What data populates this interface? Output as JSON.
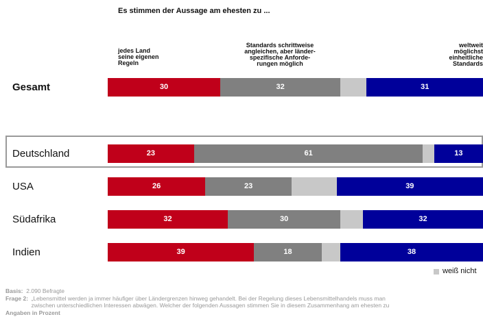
{
  "chart_data": {
    "type": "stacked-bar-horizontal",
    "title": "Es stimmen der Aussage am ehesten zu ...",
    "categories": [
      "Gesamt",
      "Deutschland",
      "USA",
      "Südafrika",
      "Indien"
    ],
    "series": [
      {
        "name": "jedes Land\nseine eigenen\nRegeln",
        "color": "#c0001a",
        "values": [
          30,
          23,
          26,
          32,
          39
        ]
      },
      {
        "name": "Standards schrittweise\nangleichen, aber länder-\nspezifische Anforde-\nrungen möglich",
        "color": "#808080",
        "values": [
          32,
          61,
          23,
          30,
          18
        ]
      },
      {
        "name": "weiß nicht",
        "color": "#c8c8c8",
        "values": [
          7,
          3,
          12,
          6,
          5
        ]
      },
      {
        "name": "weltweit\nmöglichst\neinheitliche\nStandards",
        "color": "#00009a",
        "values": [
          31,
          13,
          39,
          32,
          38
        ]
      }
    ],
    "notes": {
      "basis_label": "Basis:",
      "basis": "2.090 Befragte",
      "question_label": "Frage 2:",
      "question": "„Lebensmittel werden ja immer häufiger über Ländergrenzen hinweg gehandelt. Bei der Regelung dieses Lebensmittelhandels  muss man\nzwischen unterschiedlichen Interessen abwägen. Welcher der folgenden Aussagen stimmen Sie in diesem Zusammenhang am ehesten zu",
      "unit": "Angaben in Prozent"
    }
  }
}
